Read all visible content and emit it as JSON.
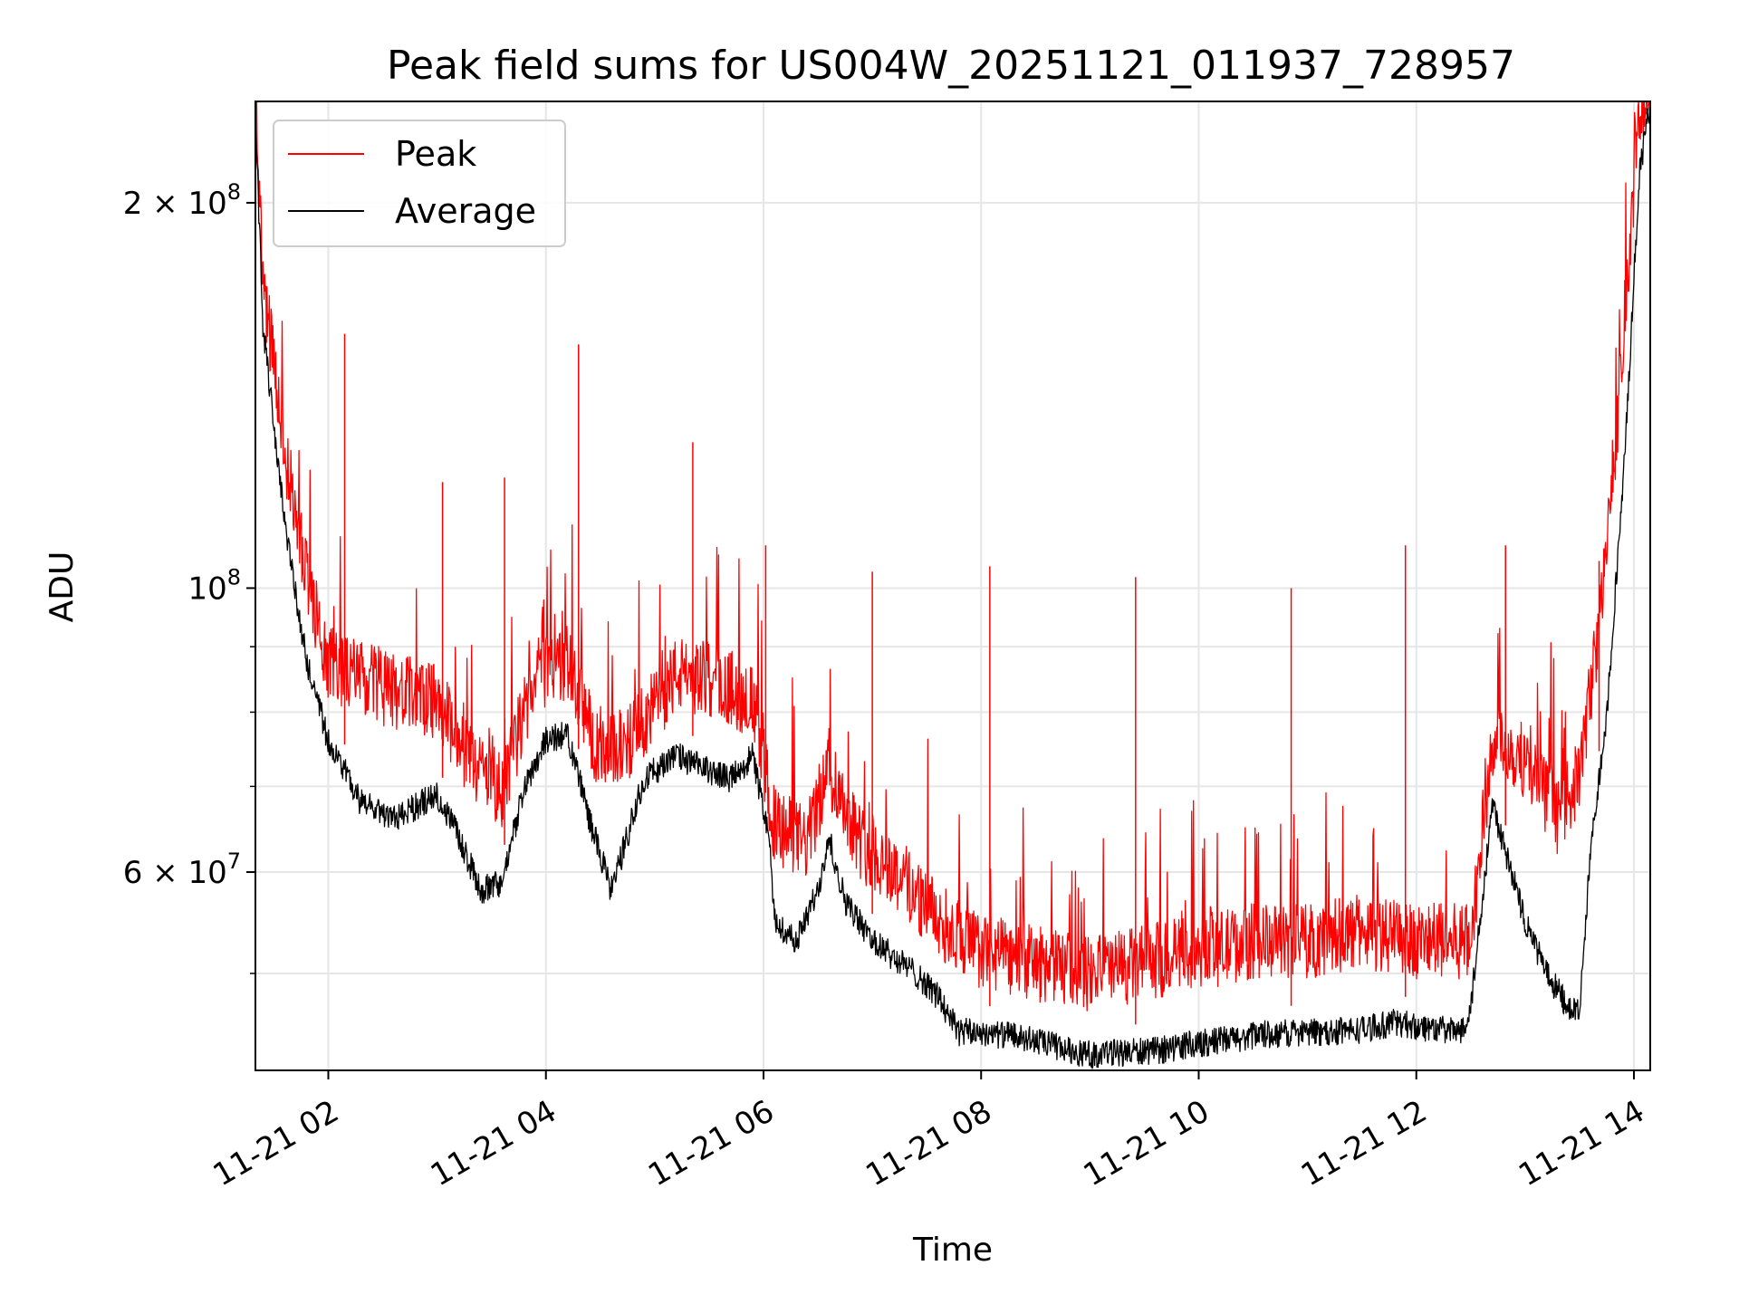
{
  "chart_data": {
    "type": "line",
    "title": "Peak field sums for US004W_20251121_011937_728957",
    "xlabel": "Time",
    "ylabel": "ADU",
    "yscale": "log",
    "xlim": [
      1.33,
      14.15
    ],
    "ylim": [
      42000000,
      240000000
    ],
    "grid": true,
    "legend_position": "upper-left",
    "x_ticks": [
      {
        "value": 2,
        "label": "11-21 02"
      },
      {
        "value": 4,
        "label": "11-21 04"
      },
      {
        "value": 6,
        "label": "11-21 06"
      },
      {
        "value": 8,
        "label": "11-21 08"
      },
      {
        "value": 10,
        "label": "11-21 10"
      },
      {
        "value": 12,
        "label": "11-21 12"
      },
      {
        "value": 14,
        "label": "11-21 14"
      }
    ],
    "y_major_ticks": [
      {
        "value": 200000000,
        "mantissa": "2",
        "times": "×",
        "base": "10",
        "exp": "8"
      },
      {
        "value": 100000000,
        "mantissa": "",
        "times": "",
        "base": "10",
        "exp": "8"
      },
      {
        "value": 60000000,
        "mantissa": "6",
        "times": "×",
        "base": "10",
        "exp": "7"
      }
    ],
    "y_minor_grid": [
      50000000,
      70000000,
      80000000,
      90000000
    ],
    "series": [
      {
        "name": "Peak",
        "color": "#ff0000",
        "style": "noisy-upper-envelope",
        "baseline_points": [
          [
            1.33,
            240000000
          ],
          [
            1.4,
            170000000
          ],
          [
            1.6,
            125000000
          ],
          [
            1.8,
            100000000
          ],
          [
            2.0,
            86000000
          ],
          [
            2.5,
            82000000
          ],
          [
            3.0,
            80000000
          ],
          [
            3.3,
            72000000
          ],
          [
            3.6,
            68000000
          ],
          [
            3.9,
            84000000
          ],
          [
            4.2,
            86000000
          ],
          [
            4.5,
            72000000
          ],
          [
            4.8,
            75000000
          ],
          [
            5.2,
            84000000
          ],
          [
            5.6,
            83000000
          ],
          [
            5.9,
            80000000
          ],
          [
            6.1,
            64000000
          ],
          [
            6.4,
            62000000
          ],
          [
            6.6,
            71000000
          ],
          [
            6.9,
            62000000
          ],
          [
            7.3,
            58000000
          ],
          [
            7.6,
            54000000
          ],
          [
            8.0,
            51000000
          ],
          [
            8.5,
            50000000
          ],
          [
            9.0,
            49000000
          ],
          [
            9.5,
            50000000
          ],
          [
            10.0,
            51000000
          ],
          [
            10.5,
            52000000
          ],
          [
            11.0,
            52000000
          ],
          [
            11.5,
            53000000
          ],
          [
            12.0,
            52000000
          ],
          [
            12.5,
            52000000
          ],
          [
            12.7,
            75000000
          ],
          [
            13.0,
            72000000
          ],
          [
            13.3,
            65000000
          ],
          [
            13.5,
            70000000
          ],
          [
            13.7,
            95000000
          ],
          [
            13.9,
            150000000
          ],
          [
            14.05,
            230000000
          ],
          [
            14.15,
            240000000
          ]
        ],
        "notable_spikes": [
          [
            1.47,
            148000000
          ],
          [
            2.15,
            158000000
          ],
          [
            3.05,
            121000000
          ],
          [
            3.62,
            122000000
          ],
          [
            4.3,
            155000000
          ],
          [
            5.35,
            130000000
          ],
          [
            6.02,
            108000000
          ],
          [
            7.0,
            103000000
          ],
          [
            8.08,
            104000000
          ],
          [
            9.42,
            102000000
          ],
          [
            10.85,
            100000000
          ],
          [
            11.9,
            108000000
          ],
          [
            12.82,
            108000000
          ],
          [
            13.68,
            105000000
          ]
        ]
      },
      {
        "name": "Average",
        "color": "#000000",
        "style": "lower-envelope",
        "baseline_points": [
          [
            1.33,
            235000000
          ],
          [
            1.4,
            160000000
          ],
          [
            1.6,
            112000000
          ],
          [
            1.8,
            88000000
          ],
          [
            2.0,
            76000000
          ],
          [
            2.3,
            68000000
          ],
          [
            2.6,
            66000000
          ],
          [
            3.0,
            69000000
          ],
          [
            3.2,
            64000000
          ],
          [
            3.4,
            58000000
          ],
          [
            3.6,
            59000000
          ],
          [
            3.8,
            70000000
          ],
          [
            4.0,
            76000000
          ],
          [
            4.2,
            77000000
          ],
          [
            4.4,
            66000000
          ],
          [
            4.6,
            58000000
          ],
          [
            4.7,
            62000000
          ],
          [
            4.9,
            71000000
          ],
          [
            5.2,
            74000000
          ],
          [
            5.5,
            72000000
          ],
          [
            5.7,
            71000000
          ],
          [
            5.9,
            74000000
          ],
          [
            6.05,
            64000000
          ],
          [
            6.1,
            55000000
          ],
          [
            6.3,
            53000000
          ],
          [
            6.5,
            58000000
          ],
          [
            6.6,
            64000000
          ],
          [
            6.75,
            57000000
          ],
          [
            7.0,
            53000000
          ],
          [
            7.4,
            50000000
          ],
          [
            7.6,
            48000000
          ],
          [
            7.8,
            45000000
          ],
          [
            8.0,
            45000000
          ],
          [
            8.4,
            44500000
          ],
          [
            8.7,
            43800000
          ],
          [
            9.0,
            43200000
          ],
          [
            9.3,
            43400000
          ],
          [
            9.6,
            43500000
          ],
          [
            9.9,
            44000000
          ],
          [
            10.2,
            44300000
          ],
          [
            10.6,
            44800000
          ],
          [
            11.0,
            45000000
          ],
          [
            11.5,
            45200000
          ],
          [
            11.8,
            45800000
          ],
          [
            12.0,
            45500000
          ],
          [
            12.4,
            45000000
          ],
          [
            12.5,
            47000000
          ],
          [
            12.7,
            68000000
          ],
          [
            12.8,
            63000000
          ],
          [
            13.0,
            55000000
          ],
          [
            13.2,
            50000000
          ],
          [
            13.4,
            47000000
          ],
          [
            13.5,
            46500000
          ],
          [
            13.6,
            62000000
          ],
          [
            13.75,
            80000000
          ],
          [
            13.9,
            120000000
          ],
          [
            14.05,
            210000000
          ],
          [
            14.15,
            240000000
          ]
        ]
      }
    ]
  }
}
